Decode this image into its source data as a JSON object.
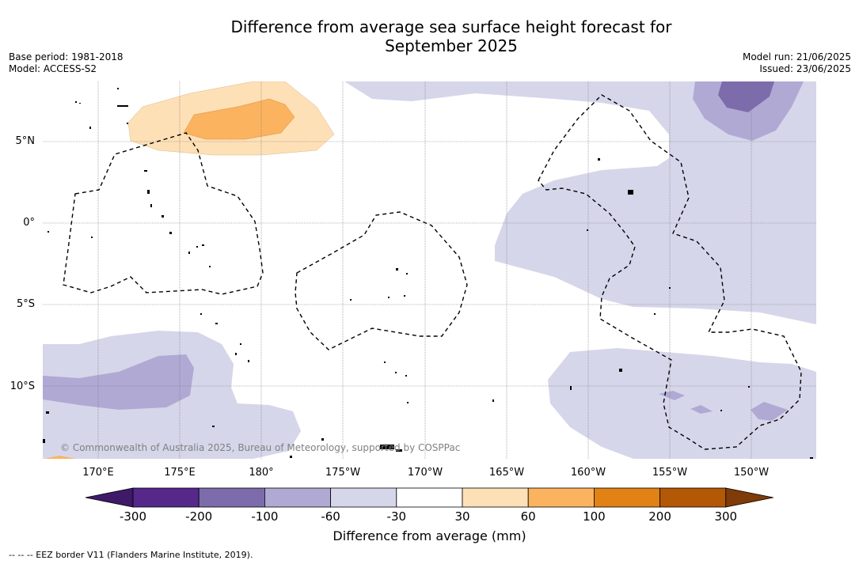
{
  "title_line1": "Difference from average sea surface height forecast for",
  "title_line2": "September 2025",
  "meta_left": {
    "base_period": "Base period: 1981-2018",
    "model": "Model: ACCESS-S2"
  },
  "meta_right": {
    "model_run": "Model run: 21/06/2025",
    "issued": "Issued: 23/06/2025"
  },
  "lat_labels": [
    "5°N",
    "0°",
    "5°S",
    "10°S"
  ],
  "lon_labels": [
    "170°E",
    "175°E",
    "180°",
    "175°W",
    "170°W",
    "165°W",
    "160°W",
    "155°W",
    "150°W"
  ],
  "colorbar": {
    "ticks": [
      "-300",
      "-200",
      "-100",
      "-60",
      "-30",
      "30",
      "60",
      "100",
      "200",
      "300"
    ],
    "colors": [
      "#3f1a68",
      "#55288a",
      "#7c6cab",
      "#b0a9d3",
      "#d6d6ea",
      "#ffffff",
      "#fee0b6",
      "#fbb35f",
      "#e08214",
      "#b35806",
      "#7f3b08"
    ],
    "title": "Difference from average (mm)"
  },
  "copyright": "© Commonwealth of Australia 2025, Bureau of Meteorology, supported by COSPPac",
  "footnote": "--  --  -- EEZ border V11 (Flanders Marine Institute, 2019)."
}
